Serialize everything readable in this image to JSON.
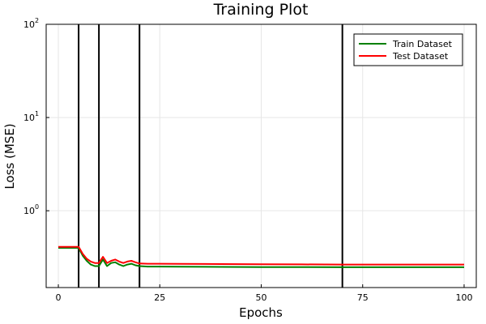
{
  "chart_data": {
    "type": "line",
    "title": "Training Plot",
    "xlabel": "Epochs",
    "ylabel": "Loss (MSE)",
    "xlim": [
      -3,
      103
    ],
    "x_ticks": [
      0,
      25,
      50,
      75,
      100
    ],
    "x_tick_labels": [
      "0",
      "25",
      "50",
      "75",
      "100"
    ],
    "y_scale": "log",
    "ylim": [
      0.15,
      100
    ],
    "y_ticks": [
      1,
      10,
      100
    ],
    "y_tick_labels": [
      {
        "base": "10",
        "exp": "0"
      },
      {
        "base": "10",
        "exp": "1"
      },
      {
        "base": "10",
        "exp": "2"
      }
    ],
    "grid": true,
    "legend_position": "top-right",
    "vertical_lines": [
      5,
      10,
      20,
      70
    ],
    "series": [
      {
        "name": "Train Dataset",
        "color": "#008000",
        "points": [
          [
            0,
            0.4
          ],
          [
            2,
            0.4
          ],
          [
            4,
            0.4
          ],
          [
            5,
            0.4
          ],
          [
            6,
            0.33
          ],
          [
            7,
            0.29
          ],
          [
            8,
            0.265
          ],
          [
            9,
            0.255
          ],
          [
            10,
            0.255
          ],
          [
            11,
            0.3
          ],
          [
            12,
            0.255
          ],
          [
            13,
            0.275
          ],
          [
            14,
            0.28
          ],
          [
            15,
            0.265
          ],
          [
            16,
            0.255
          ],
          [
            17,
            0.265
          ],
          [
            18,
            0.27
          ],
          [
            19,
            0.26
          ],
          [
            20,
            0.255
          ],
          [
            22,
            0.252
          ],
          [
            25,
            0.252
          ],
          [
            30,
            0.251
          ],
          [
            40,
            0.25
          ],
          [
            50,
            0.249
          ],
          [
            60,
            0.249
          ],
          [
            70,
            0.248
          ],
          [
            80,
            0.248
          ],
          [
            90,
            0.248
          ],
          [
            100,
            0.248
          ]
        ]
      },
      {
        "name": "Test Dataset",
        "color": "#ff0000",
        "points": [
          [
            0,
            0.41
          ],
          [
            2,
            0.41
          ],
          [
            4,
            0.41
          ],
          [
            5,
            0.41
          ],
          [
            6,
            0.345
          ],
          [
            7,
            0.305
          ],
          [
            8,
            0.285
          ],
          [
            9,
            0.275
          ],
          [
            10,
            0.275
          ],
          [
            11,
            0.32
          ],
          [
            12,
            0.275
          ],
          [
            13,
            0.29
          ],
          [
            14,
            0.3
          ],
          [
            15,
            0.285
          ],
          [
            16,
            0.275
          ],
          [
            17,
            0.285
          ],
          [
            18,
            0.29
          ],
          [
            19,
            0.28
          ],
          [
            20,
            0.272
          ],
          [
            22,
            0.27
          ],
          [
            25,
            0.27
          ],
          [
            30,
            0.269
          ],
          [
            40,
            0.268
          ],
          [
            50,
            0.267
          ],
          [
            60,
            0.266
          ],
          [
            70,
            0.265
          ],
          [
            80,
            0.265
          ],
          [
            90,
            0.265
          ],
          [
            100,
            0.265
          ]
        ]
      }
    ]
  }
}
